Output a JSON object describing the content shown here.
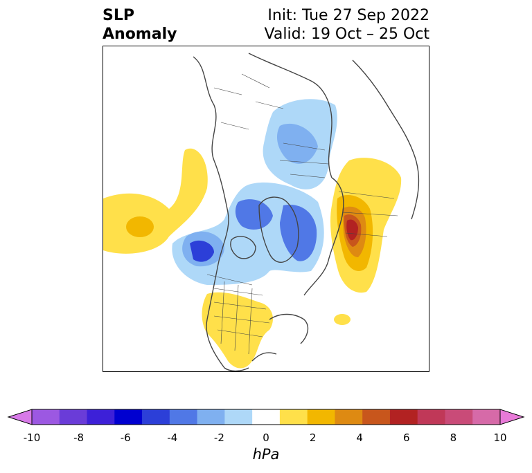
{
  "title": {
    "left_line1": "SLP",
    "left_line2": "Anomaly",
    "right_line1": "Init: Tue 27 Sep 2022",
    "right_line2": "Valid: 19 Oct – 25 Oct"
  },
  "colorbar": {
    "units": "hPa",
    "tick_labels": [
      "-10",
      "-8",
      "-6",
      "-4",
      "-2",
      "0",
      "2",
      "4",
      "6",
      "8",
      "10"
    ],
    "colors": [
      "#d77ae8",
      "#9c58e2",
      "#6a3cd8",
      "#3d20d8",
      "#0000d0",
      "#2c3fd8",
      "#5078e6",
      "#7fb0f0",
      "#aed8f8",
      "#ffffff",
      "#ffe04a",
      "#f2b700",
      "#de8a12",
      "#c8561c",
      "#b22222",
      "#c03858",
      "#c94b78",
      "#d66aa8",
      "#e87ad8"
    ]
  },
  "colors": {
    "low_light": "#aed8f8",
    "low_mid": "#7fb0f0",
    "low_strong": "#5078e6",
    "low_deep": "#2c3fd8",
    "high_light": "#ffe04a",
    "high_mid": "#f2b700",
    "high_strong": "#de8a12",
    "high_deeper": "#c8561c",
    "high_deepest": "#b22222",
    "coast": "#444444"
  }
}
